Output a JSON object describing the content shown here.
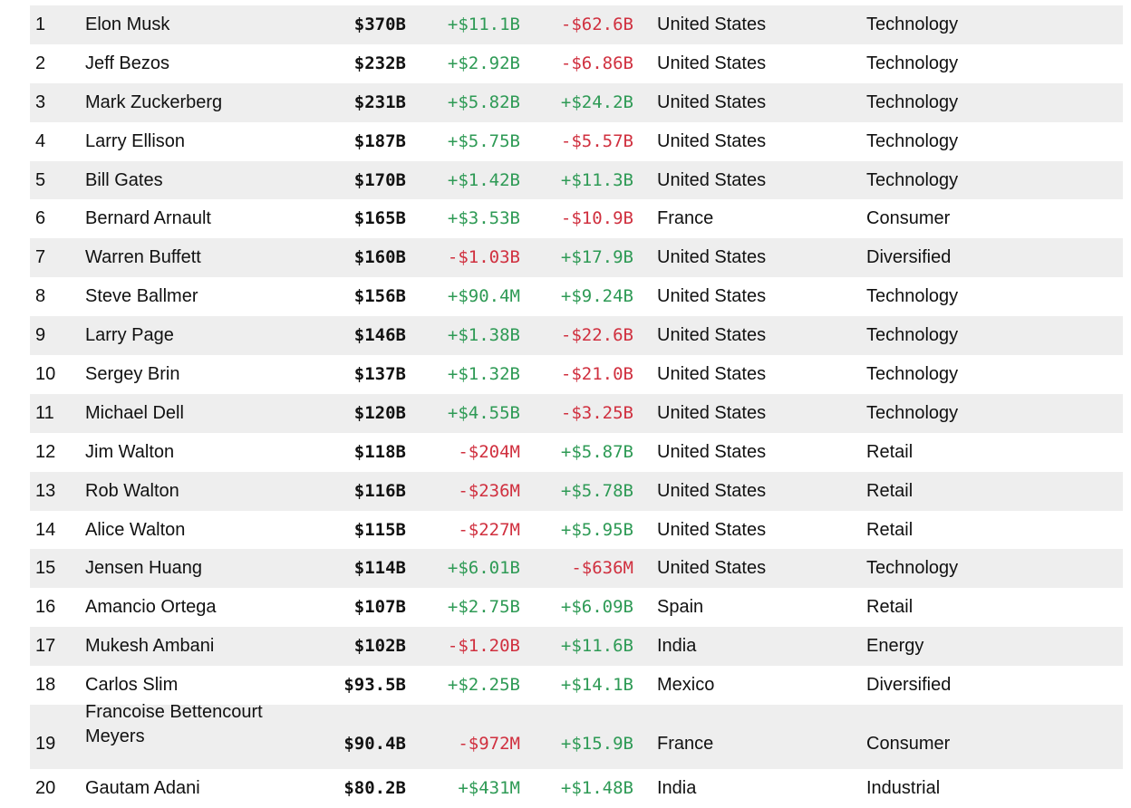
{
  "rows": [
    {
      "rank": "1",
      "name": "Elon Musk",
      "worth": "$370B",
      "last_change": "+$11.1B",
      "ytd_change": "-$62.6B",
      "country": "United States",
      "industry": "Technology"
    },
    {
      "rank": "2",
      "name": "Jeff Bezos",
      "worth": "$232B",
      "last_change": "+$2.92B",
      "ytd_change": "-$6.86B",
      "country": "United States",
      "industry": "Technology"
    },
    {
      "rank": "3",
      "name": "Mark Zuckerberg",
      "worth": "$231B",
      "last_change": "+$5.82B",
      "ytd_change": "+$24.2B",
      "country": "United States",
      "industry": "Technology"
    },
    {
      "rank": "4",
      "name": "Larry Ellison",
      "worth": "$187B",
      "last_change": "+$5.75B",
      "ytd_change": "-$5.57B",
      "country": "United States",
      "industry": "Technology"
    },
    {
      "rank": "5",
      "name": "Bill Gates",
      "worth": "$170B",
      "last_change": "+$1.42B",
      "ytd_change": "+$11.3B",
      "country": "United States",
      "industry": "Technology"
    },
    {
      "rank": "6",
      "name": "Bernard Arnault",
      "worth": "$165B",
      "last_change": "+$3.53B",
      "ytd_change": "-$10.9B",
      "country": "France",
      "industry": "Consumer"
    },
    {
      "rank": "7",
      "name": "Warren Buffett",
      "worth": "$160B",
      "last_change": "-$1.03B",
      "ytd_change": "+$17.9B",
      "country": "United States",
      "industry": "Diversified"
    },
    {
      "rank": "8",
      "name": "Steve Ballmer",
      "worth": "$156B",
      "last_change": "+$90.4M",
      "ytd_change": "+$9.24B",
      "country": "United States",
      "industry": "Technology"
    },
    {
      "rank": "9",
      "name": "Larry Page",
      "worth": "$146B",
      "last_change": "+$1.38B",
      "ytd_change": "-$22.6B",
      "country": "United States",
      "industry": "Technology"
    },
    {
      "rank": "10",
      "name": "Sergey Brin",
      "worth": "$137B",
      "last_change": "+$1.32B",
      "ytd_change": "-$21.0B",
      "country": "United States",
      "industry": "Technology"
    },
    {
      "rank": "11",
      "name": "Michael Dell",
      "worth": "$120B",
      "last_change": "+$4.55B",
      "ytd_change": "-$3.25B",
      "country": "United States",
      "industry": "Technology"
    },
    {
      "rank": "12",
      "name": "Jim Walton",
      "worth": "$118B",
      "last_change": "-$204M",
      "ytd_change": "+$5.87B",
      "country": "United States",
      "industry": "Retail"
    },
    {
      "rank": "13",
      "name": "Rob Walton",
      "worth": "$116B",
      "last_change": "-$236M",
      "ytd_change": "+$5.78B",
      "country": "United States",
      "industry": "Retail"
    },
    {
      "rank": "14",
      "name": "Alice Walton",
      "worth": "$115B",
      "last_change": "-$227M",
      "ytd_change": "+$5.95B",
      "country": "United States",
      "industry": "Retail"
    },
    {
      "rank": "15",
      "name": "Jensen Huang",
      "worth": "$114B",
      "last_change": "+$6.01B",
      "ytd_change": "-$636M",
      "country": "United States",
      "industry": "Technology"
    },
    {
      "rank": "16",
      "name": "Amancio Ortega",
      "worth": "$107B",
      "last_change": "+$2.75B",
      "ytd_change": "+$6.09B",
      "country": "Spain",
      "industry": "Retail"
    },
    {
      "rank": "17",
      "name": "Mukesh Ambani",
      "worth": "$102B",
      "last_change": "-$1.20B",
      "ytd_change": "+$11.6B",
      "country": "India",
      "industry": "Energy"
    },
    {
      "rank": "18",
      "name": "Carlos Slim",
      "worth": "$93.5B",
      "last_change": "+$2.25B",
      "ytd_change": "+$14.1B",
      "country": "Mexico",
      "industry": "Diversified"
    },
    {
      "rank": "19",
      "name": "Francoise Bettencourt Meyers",
      "worth": "$90.4B",
      "last_change": "-$972M",
      "ytd_change": "+$15.9B",
      "country": "France",
      "industry": "Consumer"
    },
    {
      "rank": "20",
      "name": "Gautam Adani",
      "worth": "$80.2B",
      "last_change": "+$431M",
      "ytd_change": "+$1.48B",
      "country": "India",
      "industry": "Industrial"
    }
  ],
  "colors": {
    "positive": "#2e9a55",
    "negative": "#d0303f",
    "stripe": "#eeeeee"
  }
}
